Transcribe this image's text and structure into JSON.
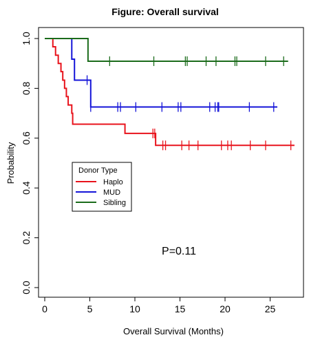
{
  "chart_data": {
    "type": "line",
    "subtype": "kaplan-meier",
    "title": "Figure: Overall survival",
    "xlabel": "Overall Survival (Months)",
    "ylabel": "Probability",
    "xlim": [
      0,
      28
    ],
    "ylim": [
      0,
      1.0
    ],
    "xticks": [
      "0",
      "5",
      "10",
      "15",
      "20",
      "25"
    ],
    "yticks": [
      "0.0",
      "0.2",
      "0.4",
      "0.6",
      "0.8",
      "1.0"
    ],
    "grid": false,
    "legend": {
      "title": "Donor Type",
      "placement": "center-left",
      "entries": [
        "Haplo",
        "MUD",
        "Sibling"
      ]
    },
    "annotation": "P=0.11",
    "series": [
      {
        "name": "Haplo",
        "color": "#e8121b",
        "steps": [
          [
            0,
            1.0
          ],
          [
            0.9,
            0.967
          ],
          [
            1.2,
            0.933
          ],
          [
            1.5,
            0.9
          ],
          [
            1.8,
            0.867
          ],
          [
            2.0,
            0.833
          ],
          [
            2.2,
            0.8
          ],
          [
            2.4,
            0.767
          ],
          [
            2.6,
            0.733
          ],
          [
            3.0,
            0.7
          ],
          [
            3.1,
            0.656
          ],
          [
            8.9,
            0.619
          ],
          [
            12.3,
            0.571
          ],
          [
            27.7,
            0.571
          ]
        ],
        "censored": [
          12.0,
          12.2,
          13.1,
          13.4,
          15.2,
          16.0,
          17.0,
          19.6,
          20.3,
          20.7,
          22.8,
          24.5,
          27.3
        ]
      },
      {
        "name": "MUD",
        "color": "#1313d8",
        "steps": [
          [
            0,
            1.0
          ],
          [
            3.0,
            0.917
          ],
          [
            3.3,
            0.833
          ],
          [
            5.1,
            0.725
          ],
          [
            25.8,
            0.725
          ]
        ],
        "censored": [
          4.7,
          5.1,
          8.1,
          8.4,
          10.1,
          13.0,
          14.8,
          15.1,
          18.3,
          18.9,
          19.2,
          19.3,
          22.7,
          25.4
        ]
      },
      {
        "name": "Sibling",
        "color": "#1a6b1a",
        "steps": [
          [
            0,
            1.0
          ],
          [
            4.8,
            0.909
          ],
          [
            27.0,
            0.909
          ]
        ],
        "censored": [
          7.2,
          12.1,
          15.6,
          15.8,
          17.9,
          19.0,
          21.1,
          21.3,
          24.5,
          26.5
        ]
      }
    ]
  }
}
